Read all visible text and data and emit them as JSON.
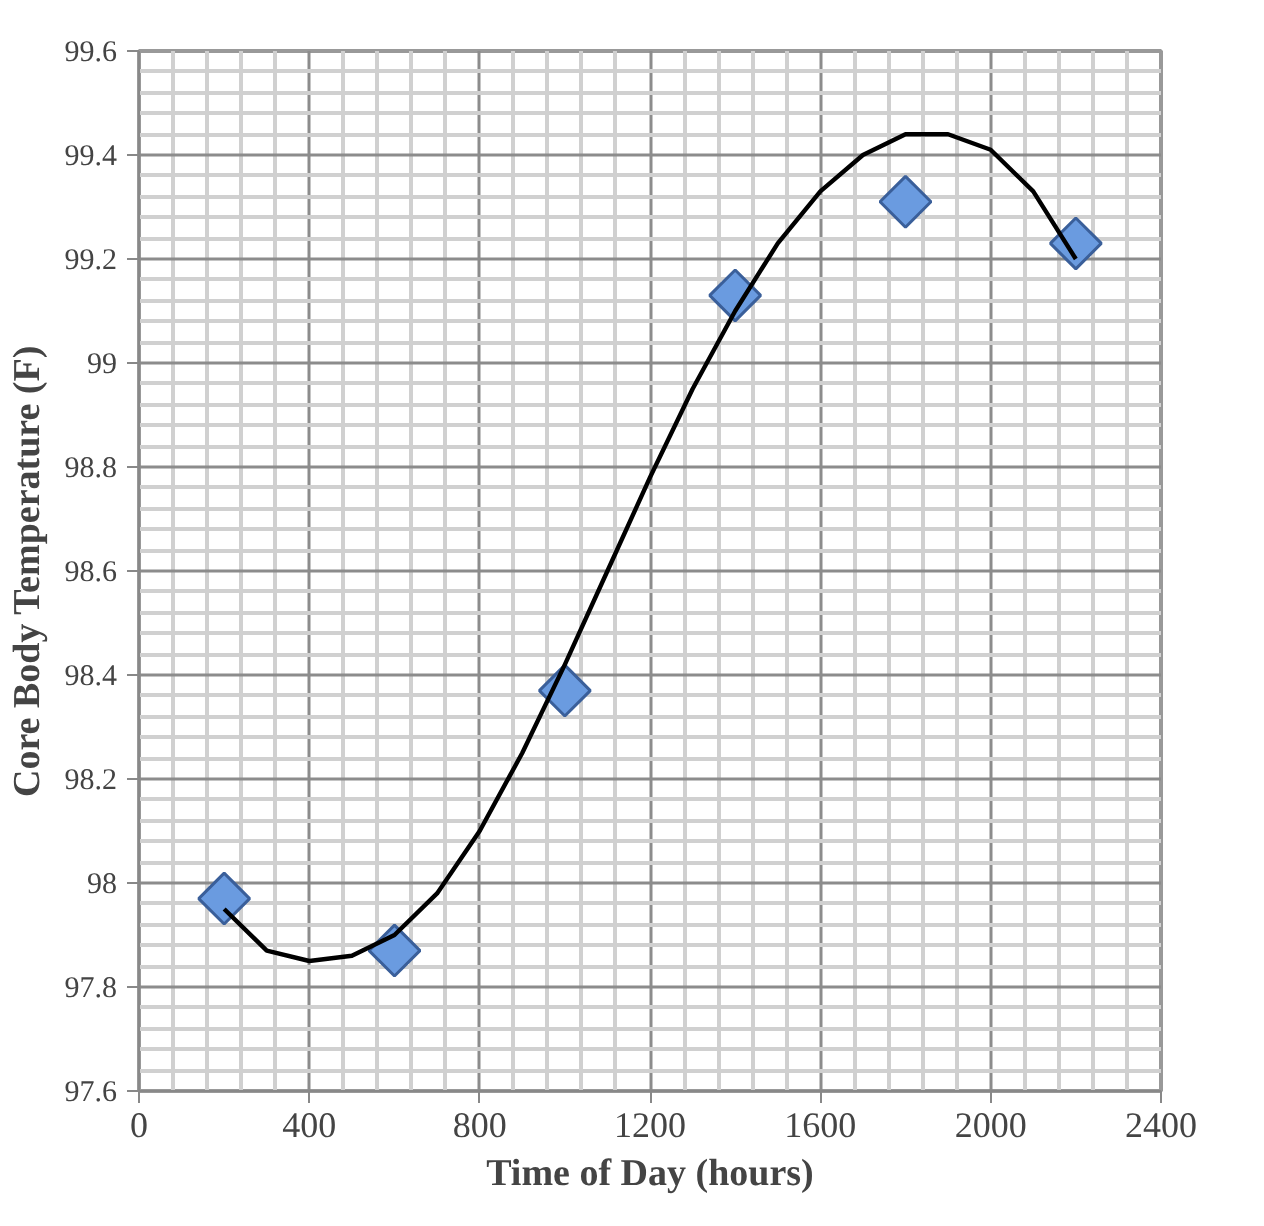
{
  "chart_data": {
    "type": "scatter",
    "xlabel": "Time of Day (hours)",
    "ylabel": "Core Body Temperature (F)",
    "xlim": [
      0,
      2400
    ],
    "xticks": [
      0,
      400,
      800,
      1200,
      1600,
      2000,
      2400
    ],
    "ylim": [
      97.6,
      99.6
    ],
    "yticks": [
      97.6,
      97.8,
      98,
      98.2,
      98.4,
      98.6,
      98.8,
      99,
      99.2,
      99.4,
      99.6
    ],
    "grid": true,
    "marker": "diamond",
    "series": [
      {
        "color": "#6a9be0",
        "x": [
          200,
          600,
          1000,
          1400,
          1800,
          2200
        ],
        "values": [
          97.97,
          97.87,
          98.37,
          99.13,
          99.31,
          99.23
        ]
      },
      {
        "type": "line",
        "color": "#000000",
        "marker": "none",
        "x": [
          200,
          300,
          400,
          500,
          600,
          700,
          800,
          900,
          1000,
          1100,
          1200,
          1300,
          1400,
          1500,
          1600,
          1700,
          1800,
          1900,
          2000,
          2100,
          2200
        ],
        "values": [
          97.95,
          97.87,
          97.85,
          97.86,
          97.9,
          97.98,
          98.1,
          98.25,
          98.42,
          98.6,
          98.78,
          98.95,
          99.1,
          99.23,
          99.33,
          99.4,
          99.44,
          99.44,
          99.41,
          99.33,
          99.2
        ]
      }
    ]
  }
}
